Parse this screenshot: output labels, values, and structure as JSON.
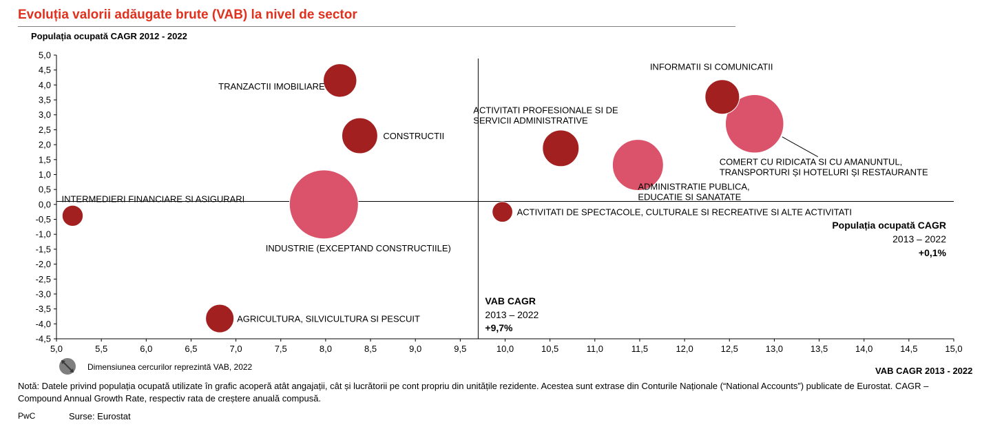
{
  "title": "Evoluția valorii adăugate brute (VAB) la nivel de sector",
  "ylabel": "Populația ocupată CAGR 2012 - 2022",
  "xlabel": "VAB CAGR 2013 - 2022",
  "size_note": "Dimensiunea cercurilor reprezintă VAB, 2022",
  "note": "Notă: Datele privind populația ocupată utilizate în grafic acoperă atât angajații, cât și lucrătorii pe cont propriu din unitățile rezidente. Acestea sunt extrase din Conturile Naționale (“National Accounts”) publicate de Eurostat. CAGR – Compound Annual Growth Rate, respectiv rata de creștere anuală compusă.",
  "footer_left": "PwC",
  "footer_source": "Surse: Eurostat",
  "colors": {
    "title": "#e0301e",
    "bubble_dark": "#a32020",
    "bubble_light": "#db536a"
  },
  "chart_data": {
    "type": "scatter",
    "subtype": "bubble",
    "xlim": [
      5.0,
      15.0
    ],
    "ylim": [
      -4.5,
      5.0
    ],
    "x_ticks": [
      "5,0",
      "5,5",
      "6,0",
      "6,5",
      "7,0",
      "7,5",
      "8,0",
      "8,5",
      "9,0",
      "9,5",
      "10,0",
      "10,5",
      "11,0",
      "11,5",
      "12,0",
      "12,5",
      "13,0",
      "13,5",
      "14,0",
      "14,5",
      "15,0"
    ],
    "y_ticks": [
      "5,0",
      "4,5",
      "4,0",
      "3,5",
      "3,0",
      "2,5",
      "2,0",
      "1,5",
      "1,0",
      "0,5",
      "0,0",
      "-0,5",
      "-1,0",
      "-1,5",
      "-2,0",
      "-2,5",
      "-3,0",
      "-3,5",
      "-4,0",
      "-4,5"
    ],
    "reference_lines": [
      {
        "axis": "x",
        "value": 9.7,
        "title": "VAB CAGR",
        "subtitle": "2013 – 2022",
        "value_label": "+9,7%"
      },
      {
        "axis": "y",
        "value": 0.1,
        "title": "Populația ocupată CAGR",
        "subtitle": "2013 – 2022",
        "value_label": "+0,1%"
      }
    ],
    "points": [
      {
        "label": "TRANZACTII IMOBILIARE",
        "x": 8.16,
        "y": 4.15,
        "size": 6.1,
        "color": "dark"
      },
      {
        "label": "CONSTRUCTII",
        "x": 8.38,
        "y": 2.3,
        "size": 7.0,
        "color": "dark"
      },
      {
        "label": "INTERMEDIERI FINANCIARE SI ASIGURARI",
        "x": 5.18,
        "y": -0.38,
        "size": 2.4,
        "color": "dark"
      },
      {
        "label": "INDUSTRIE (EXCEPTAND CONSTRUCTIILE)",
        "x": 7.98,
        "y": 0.0,
        "size": 26.0,
        "color": "light"
      },
      {
        "label": "AGRICULTURA, SILVICULTURA SI PESCUIT",
        "x": 6.82,
        "y": -3.82,
        "size": 4.4,
        "color": "dark"
      },
      {
        "label": "ACTIVITATI PROFESIONALE SI DE SERVICII ADMINISTRATIVE",
        "x": 10.62,
        "y": 1.88,
        "size": 7.3,
        "color": "dark"
      },
      {
        "label": "ADMINISTRATIE PUBLICA, EDUCATIE SI SANATATE",
        "x": 11.48,
        "y": 1.32,
        "size": 14.2,
        "color": "light"
      },
      {
        "label": "INFORMATII SI COMUNICATII",
        "x": 12.42,
        "y": 3.6,
        "size": 6.5,
        "color": "dark"
      },
      {
        "label": "COMERT CU RIDICATA SI CU AMANUNTUL, TRANSPORTURI ȘI HOTELURI ȘI RESTAURANTE",
        "x": 12.78,
        "y": 2.7,
        "size": 18.6,
        "color": "light"
      },
      {
        "label": "ACTIVITATI DE SPECTACOLE, CULTURALE SI RECREATIVE SI ALTE ACTIVITATI",
        "x": 9.97,
        "y": -0.25,
        "size": 2.3,
        "color": "dark"
      }
    ]
  }
}
